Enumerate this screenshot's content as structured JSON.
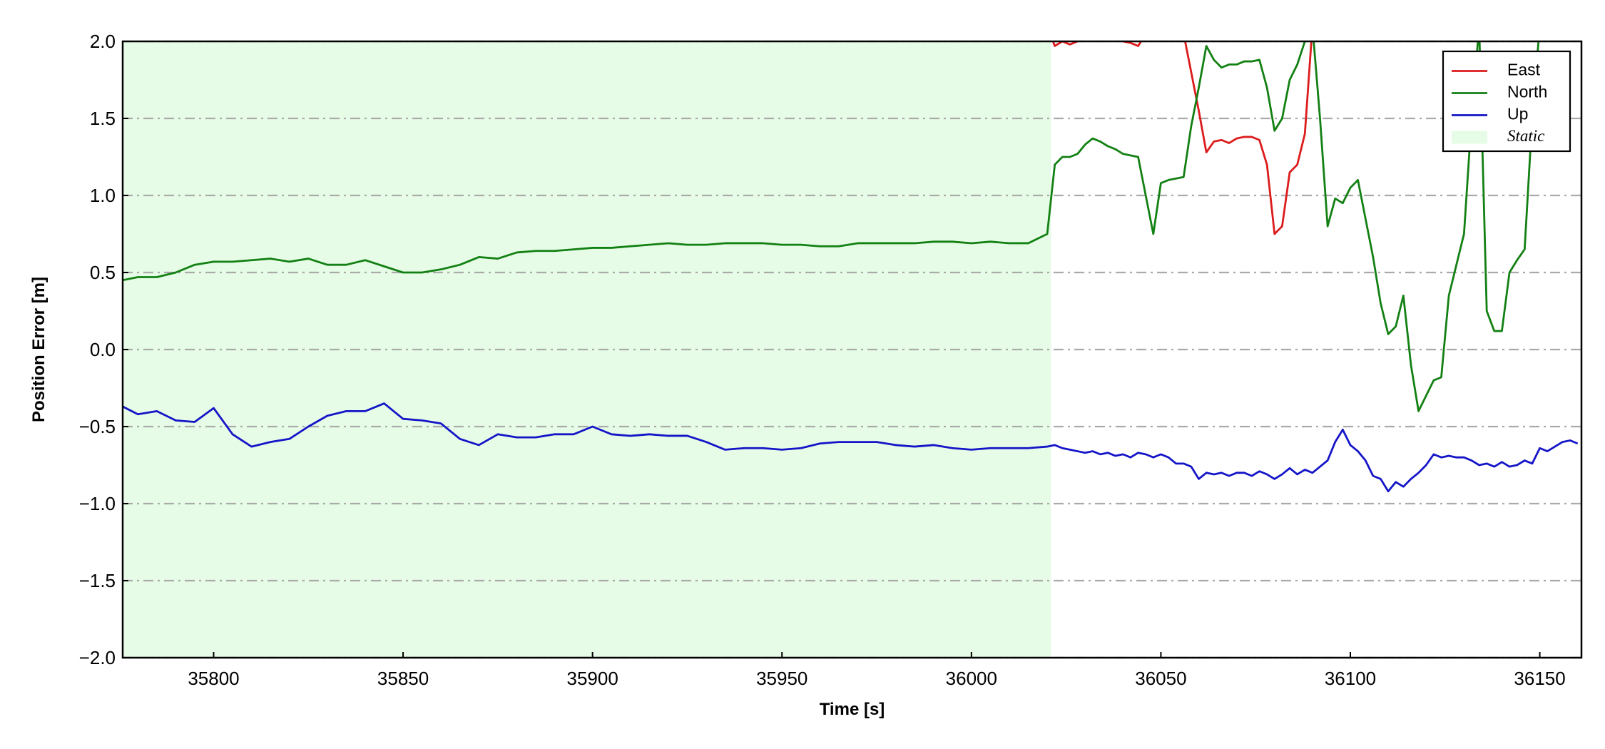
{
  "chart_data": {
    "type": "line",
    "xlabel": "Time [s]",
    "ylabel": "Position Error [m]",
    "xlim": [
      35776,
      36161
    ],
    "ylim": [
      -2.0,
      2.0
    ],
    "xticks": [
      35800,
      35850,
      35900,
      35950,
      36000,
      36050,
      36100,
      36150
    ],
    "yticks": [
      {
        "value": -2.0,
        "label": "−2.0"
      },
      {
        "value": -1.5,
        "label": "−1.5"
      },
      {
        "value": -1.0,
        "label": "−1.0"
      },
      {
        "value": -0.5,
        "label": "−0.5"
      },
      {
        "value": 0.0,
        "label": "0.0"
      },
      {
        "value": 0.5,
        "label": "0.5"
      },
      {
        "value": 1.0,
        "label": "1.0"
      },
      {
        "value": 1.5,
        "label": "1.5"
      },
      {
        "value": 2.0,
        "label": "2.0"
      }
    ],
    "grid": true,
    "legend": "upper right",
    "shaded": {
      "name": "Static",
      "x0": 35776,
      "x1": 36021,
      "color": "#e6fce6"
    },
    "x": [
      35776,
      35780,
      35785,
      35790,
      35795,
      35800,
      35805,
      35810,
      35815,
      35820,
      35825,
      35830,
      35835,
      35840,
      35845,
      35850,
      35855,
      35860,
      35865,
      35870,
      35875,
      35880,
      35885,
      35890,
      35895,
      35900,
      35905,
      35910,
      35915,
      35920,
      35925,
      35930,
      35935,
      35940,
      35945,
      35950,
      35955,
      35960,
      35965,
      35970,
      35975,
      35980,
      35985,
      35990,
      35995,
      36000,
      36005,
      36010,
      36015,
      36020,
      36022,
      36024,
      36026,
      36028,
      36030,
      36032,
      36034,
      36036,
      36038,
      36040,
      36042,
      36044,
      36046,
      36048,
      36050,
      36052,
      36054,
      36056,
      36058,
      36060,
      36062,
      36064,
      36066,
      36068,
      36070,
      36072,
      36074,
      36076,
      36078,
      36080,
      36082,
      36084,
      36086,
      36088,
      36090,
      36092,
      36094,
      36096,
      36098,
      36100,
      36102,
      36104,
      36106,
      36108,
      36110,
      36112,
      36114,
      36116,
      36118,
      36120,
      36122,
      36124,
      36126,
      36128,
      36130,
      36132,
      36134,
      36136,
      36138,
      36140,
      36142,
      36144,
      36146,
      36148,
      36150,
      36152,
      36154,
      36156,
      36158,
      36160
    ],
    "series": [
      {
        "name": "East",
        "color": "#dc1c1c",
        "values": [
          null,
          null,
          null,
          null,
          null,
          null,
          null,
          null,
          null,
          null,
          null,
          null,
          null,
          null,
          null,
          null,
          null,
          null,
          null,
          null,
          null,
          null,
          null,
          null,
          null,
          null,
          null,
          null,
          null,
          null,
          null,
          null,
          null,
          null,
          null,
          null,
          null,
          null,
          null,
          null,
          null,
          null,
          null,
          null,
          null,
          null,
          null,
          null,
          null,
          2.1,
          1.97,
          2.0,
          1.98,
          2.0,
          2.05,
          2.05,
          2.05,
          2.05,
          2.05,
          2.0,
          1.99,
          1.97,
          2.05,
          2.1,
          2.1,
          2.1,
          2.1,
          2.05,
          1.8,
          1.55,
          1.28,
          1.35,
          1.36,
          1.34,
          1.37,
          1.38,
          1.38,
          1.36,
          1.2,
          0.75,
          0.8,
          1.15,
          1.2,
          1.4,
          2.1,
          null,
          null,
          null,
          null,
          null,
          null,
          null,
          null,
          null,
          null,
          null,
          null,
          null,
          null,
          null,
          null,
          null,
          null,
          null,
          null,
          null,
          null,
          null,
          null,
          null,
          null,
          null,
          null,
          null,
          null,
          null,
          null,
          null,
          null,
          null
        ]
      },
      {
        "name": "North",
        "color": "#138013",
        "values": [
          0.45,
          0.47,
          0.47,
          0.5,
          0.55,
          0.57,
          0.57,
          0.58,
          0.59,
          0.57,
          0.59,
          0.55,
          0.55,
          0.58,
          0.54,
          0.5,
          0.5,
          0.52,
          0.55,
          0.6,
          0.59,
          0.63,
          0.64,
          0.64,
          0.65,
          0.66,
          0.66,
          0.67,
          0.68,
          0.69,
          0.68,
          0.68,
          0.69,
          0.69,
          0.69,
          0.68,
          0.68,
          0.67,
          0.67,
          0.69,
          0.69,
          0.69,
          0.69,
          0.7,
          0.7,
          0.69,
          0.7,
          0.69,
          0.69,
          0.75,
          1.2,
          1.25,
          1.25,
          1.27,
          1.33,
          1.37,
          1.35,
          1.32,
          1.3,
          1.27,
          1.26,
          1.25,
          1.0,
          0.75,
          1.08,
          1.1,
          1.11,
          1.12,
          1.45,
          1.7,
          1.97,
          1.88,
          1.83,
          1.85,
          1.85,
          1.87,
          1.87,
          1.88,
          1.7,
          1.42,
          1.5,
          1.75,
          1.85,
          2.0,
          2.1,
          1.5,
          0.8,
          0.98,
          0.95,
          1.05,
          1.1,
          0.85,
          0.6,
          0.3,
          0.1,
          0.15,
          0.35,
          -0.1,
          -0.4,
          -0.3,
          -0.2,
          -0.18,
          0.35,
          0.55,
          0.75,
          1.5,
          2.1,
          0.25,
          0.12,
          0.12,
          0.5,
          0.58,
          0.65,
          1.5,
          2.1,
          null,
          null,
          null,
          null,
          null
        ]
      },
      {
        "name": "Up",
        "color": "#1515c8",
        "values": [
          -0.37,
          -0.42,
          -0.4,
          -0.46,
          -0.47,
          -0.38,
          -0.55,
          -0.63,
          -0.6,
          -0.58,
          -0.5,
          -0.43,
          -0.4,
          -0.4,
          -0.35,
          -0.45,
          -0.46,
          -0.48,
          -0.58,
          -0.62,
          -0.55,
          -0.57,
          -0.57,
          -0.55,
          -0.55,
          -0.5,
          -0.55,
          -0.56,
          -0.55,
          -0.56,
          -0.56,
          -0.6,
          -0.65,
          -0.64,
          -0.64,
          -0.65,
          -0.64,
          -0.61,
          -0.6,
          -0.6,
          -0.6,
          -0.62,
          -0.63,
          -0.62,
          -0.64,
          -0.65,
          -0.64,
          -0.64,
          -0.64,
          -0.63,
          -0.62,
          -0.64,
          -0.65,
          -0.66,
          -0.67,
          -0.66,
          -0.68,
          -0.67,
          -0.69,
          -0.68,
          -0.7,
          -0.67,
          -0.68,
          -0.7,
          -0.68,
          -0.7,
          -0.74,
          -0.74,
          -0.76,
          -0.84,
          -0.8,
          -0.81,
          -0.8,
          -0.82,
          -0.8,
          -0.8,
          -0.82,
          -0.79,
          -0.81,
          -0.84,
          -0.81,
          -0.77,
          -0.81,
          -0.78,
          -0.8,
          -0.76,
          -0.72,
          -0.6,
          -0.52,
          -0.62,
          -0.66,
          -0.72,
          -0.82,
          -0.84,
          -0.92,
          -0.86,
          -0.89,
          -0.84,
          -0.8,
          -0.75,
          -0.68,
          -0.7,
          -0.69,
          -0.7,
          -0.7,
          -0.72,
          -0.75,
          -0.74,
          -0.76,
          -0.73,
          -0.76,
          -0.75,
          -0.72,
          -0.74,
          -0.64,
          -0.66,
          -0.63,
          -0.6,
          -0.59,
          -0.61
        ]
      }
    ]
  }
}
